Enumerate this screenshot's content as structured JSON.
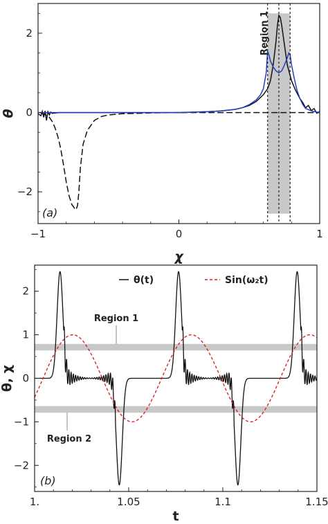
{
  "chart_data": [
    {
      "panel": "(a)",
      "type": "line",
      "xlabel": "χ",
      "ylabel": "θ",
      "xlim": [
        -1,
        1
      ],
      "ylim": [
        -2.8,
        2.75
      ],
      "xticks": [
        -1,
        0,
        1
      ],
      "yticks": [
        -2,
        0,
        2
      ],
      "grid": false,
      "shaded_region": {
        "label": "Region 1",
        "x": [
          0.63,
          0.79
        ],
        "y": [
          -2.55,
          2.5
        ],
        "color": "#c8c8c8"
      },
      "dotted_verticals": [
        0.63,
        0.71,
        0.79
      ],
      "series": [
        {
          "style": "dashed",
          "color": "#111111",
          "x": [
            -0.98,
            -0.95,
            -0.92,
            -0.9,
            -0.88,
            -0.86,
            -0.84,
            -0.82,
            -0.8,
            -0.78,
            -0.76,
            -0.74,
            -0.73,
            -0.72,
            -0.71,
            -0.7,
            -0.68,
            -0.65,
            -0.6,
            -0.55,
            -0.5,
            -0.4,
            -0.3,
            -0.2,
            0,
            0.2,
            0.4,
            0.6,
            0.8,
            1.0
          ],
          "y": [
            -0.01,
            -0.05,
            -0.12,
            -0.22,
            -0.38,
            -0.6,
            -0.9,
            -1.3,
            -1.75,
            -2.1,
            -2.32,
            -2.42,
            -2.45,
            -2.35,
            -2.0,
            -1.4,
            -0.8,
            -0.45,
            -0.2,
            -0.1,
            -0.06,
            -0.03,
            -0.02,
            -0.01,
            0,
            0,
            0,
            0,
            0,
            0
          ]
        },
        {
          "style": "solid",
          "color": "#111111",
          "x": [
            -1.0,
            -0.98,
            -0.97,
            -0.96,
            -0.95,
            -0.94,
            -0.93,
            -0.92,
            -0.91,
            -0.9,
            -0.85,
            -0.7,
            -0.5,
            -0.2,
            0,
            0.2,
            0.3,
            0.4,
            0.45,
            0.5,
            0.55,
            0.6,
            0.63,
            0.65,
            0.67,
            0.69,
            0.7,
            0.71,
            0.72,
            0.73,
            0.75,
            0.77,
            0.8,
            0.83,
            0.86,
            0.88,
            0.9,
            0.92,
            0.94,
            0.96,
            0.98,
            1.0
          ],
          "y": [
            -0.03,
            -0.08,
            0.03,
            -0.12,
            0.04,
            -0.2,
            0.02,
            -0.06,
            0.01,
            -0.02,
            0.0,
            0.0,
            0.0,
            0.0,
            0.0,
            0.02,
            0.04,
            0.08,
            0.12,
            0.18,
            0.28,
            0.45,
            0.6,
            0.8,
            1.2,
            1.8,
            2.2,
            2.45,
            2.4,
            2.2,
            1.7,
            1.2,
            0.8,
            0.55,
            0.35,
            0.25,
            0.12,
            0.18,
            0.05,
            0.1,
            -0.02,
            0.03
          ]
        },
        {
          "style": "solid",
          "color": "#1f3fbf",
          "x": [
            -1.0,
            -0.5,
            0,
            0.2,
            0.3,
            0.4,
            0.45,
            0.5,
            0.55,
            0.58,
            0.6,
            0.62,
            0.63,
            0.64,
            0.65,
            0.67,
            0.69,
            0.71,
            0.73,
            0.75,
            0.77,
            0.78,
            0.79,
            0.8,
            0.82,
            0.84,
            0.86,
            0.88,
            0.9,
            0.95,
            1.0
          ],
          "y": [
            0,
            0,
            0,
            0.02,
            0.04,
            0.08,
            0.12,
            0.2,
            0.32,
            0.45,
            0.6,
            1.0,
            1.55,
            1.45,
            1.3,
            1.15,
            1.05,
            1.0,
            1.05,
            1.2,
            1.38,
            1.5,
            1.45,
            1.2,
            0.85,
            0.55,
            0.35,
            0.2,
            0.1,
            0.03,
            0
          ]
        }
      ]
    },
    {
      "panel": "(b)",
      "type": "line",
      "xlabel": "t",
      "ylabel": "θ, χ",
      "xlim": [
        1.0,
        1.15
      ],
      "ylim": [
        -2.6,
        2.6
      ],
      "xticks": [
        1.0,
        1.05,
        1.1,
        1.15
      ],
      "xtick_labels": [
        "1.",
        "1.05",
        "1.1",
        "1.15"
      ],
      "yticks": [
        -2,
        -1,
        0,
        1,
        2
      ],
      "grid": false,
      "legend": {
        "placement": "top",
        "entries": [
          "θ(t)",
          "Sin(ω₂t)"
        ]
      },
      "bands": [
        {
          "label": "Region 1",
          "y": [
            0.64,
            0.79
          ],
          "color": "#c8c8c8"
        },
        {
          "label": "Region 2",
          "y": [
            -0.79,
            -0.64
          ],
          "color": "#c8c8c8"
        }
      ],
      "series": [
        {
          "name": "θ(t)",
          "style": "solid",
          "color": "#111111",
          "peak_times_positive": [
            1.0135,
            1.0765,
            1.1395
          ],
          "peak_times_negative": [
            1.045,
            1.108
          ],
          "peak_amplitude": 2.45
        },
        {
          "name": "Sin(ω₂t)",
          "style": "dashed",
          "color": "#e02020",
          "amplitude": 1.0,
          "period": 0.063,
          "phase_zero_time": 1.0045
        }
      ]
    }
  ],
  "text": {
    "region1": "Region 1",
    "region2": "Region 2",
    "panel_a": "(a)",
    "panel_b": "(b)",
    "legend_theta": "θ(t)",
    "legend_sin": "Sin(ω₂t)"
  }
}
